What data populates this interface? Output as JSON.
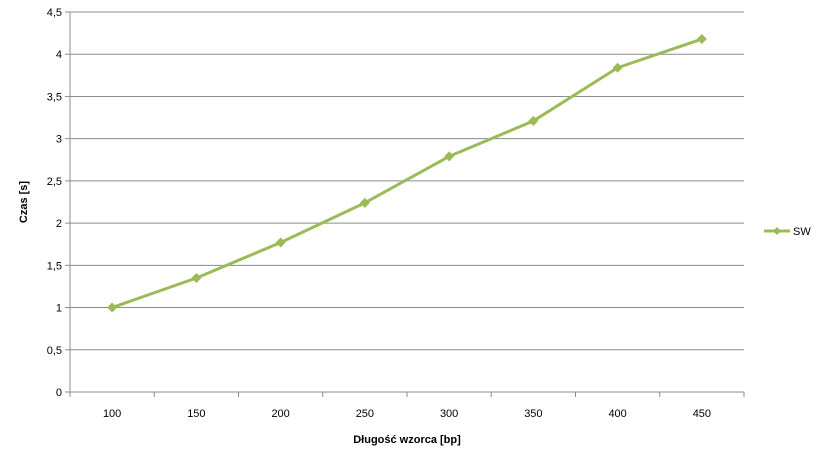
{
  "chart_data": {
    "type": "line",
    "title": "",
    "xlabel": "Długość wzorca [bp]",
    "ylabel": "Czas [s]",
    "categories": [
      "100",
      "150",
      "200",
      "250",
      "300",
      "350",
      "400",
      "450"
    ],
    "series": [
      {
        "name": "SW",
        "color": "#9bbb59",
        "marker": "diamond",
        "values": [
          1.0,
          1.35,
          1.77,
          2.24,
          2.79,
          3.21,
          3.84,
          4.18
        ]
      }
    ],
    "ylim": [
      0,
      4.5
    ],
    "yticks": [
      0,
      0.5,
      1,
      1.5,
      2,
      2.5,
      3,
      3.5,
      4,
      4.5
    ],
    "ytick_labels": [
      "0",
      "0,5",
      "1",
      "1,5",
      "2",
      "2,5",
      "3",
      "3,5",
      "4",
      "4,5"
    ],
    "grid": true,
    "legend_position": "right"
  }
}
